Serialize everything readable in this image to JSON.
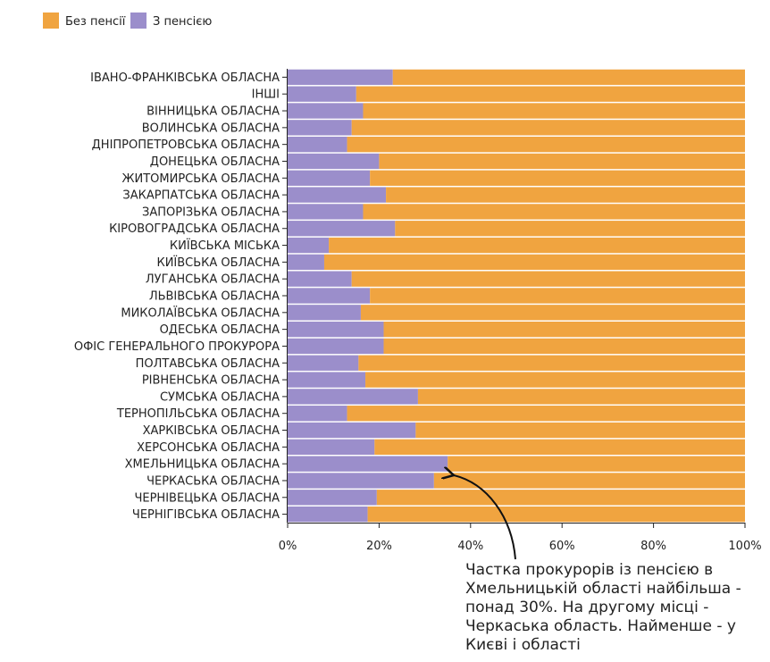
{
  "chart_data": {
    "type": "bar",
    "orientation": "horizontal",
    "stacked": "normalized_percent",
    "categories": [
      "ІВАНО-ФРАНКІВСЬКА ОБЛАСНА",
      "ІНШІ",
      "ВІННИЦЬКА ОБЛАСНА",
      "ВОЛИНСЬКА ОБЛАСНА",
      "ДНІПРОПЕТРОВСЬКА ОБЛАСНА",
      "ДОНЕЦЬКА ОБЛАСНА",
      "ЖИТОМИРСЬКА ОБЛАСНА",
      "ЗАКАРПАТСЬКА ОБЛАСНА",
      "ЗАПОРІЗЬКА ОБЛАСНА",
      "КІРОВОГРАДСЬКА ОБЛАСНА",
      "КИЇВСЬКА МІСЬКА",
      "КИЇВСЬКА ОБЛАСНА",
      "ЛУГАНСЬКА ОБЛАСНА",
      "ЛЬВІВСЬКА ОБЛАСНА",
      "МИКОЛАЇВСЬКА ОБЛАСНА",
      "ОДЕСЬКА ОБЛАСНА",
      "ОФІС ГЕНЕРАЛЬНОГО ПРОКУРОРА",
      "ПОЛТАВСЬКА ОБЛАСНА",
      "РІВНЕНСЬКА ОБЛАСНА",
      "СУМСЬКА ОБЛАСНА",
      "ТЕРНОПІЛЬСЬКА ОБЛАСНА",
      "ХАРКІВСЬКА ОБЛАСНА",
      "ХЕРСОНСЬКА ОБЛАСНА",
      "ХМЕЛЬНИЦЬКА ОБЛАСНА",
      "ЧЕРКАСЬКА ОБЛАСНА",
      "ЧЕРНІВЕЦЬКА ОБЛАСНА",
      "ЧЕРНІГІВСЬКА ОБЛАСНА"
    ],
    "series": [
      {
        "name": "З пенсією",
        "color": "#9b8ecb",
        "values": [
          23,
          15,
          16.5,
          14,
          13,
          20,
          18,
          21.5,
          16.5,
          23.5,
          9,
          8,
          14,
          18,
          16,
          21,
          21,
          15.5,
          17,
          28.5,
          13,
          28,
          19,
          35,
          32,
          19.5,
          17.5
        ]
      },
      {
        "name": "Без пенсії",
        "color": "#f0a440",
        "values": [
          77,
          85,
          83.5,
          86,
          87,
          80,
          82,
          78.5,
          83.5,
          76.5,
          91,
          92,
          86,
          82,
          84,
          79,
          79,
          84.5,
          83,
          71.5,
          87,
          72,
          81,
          65,
          68,
          80.5,
          82.5
        ]
      }
    ],
    "xlim": [
      0,
      100
    ],
    "x_unit": "percent",
    "x_ticks": [
      "0%",
      "20%",
      "40%",
      "60%",
      "80%",
      "100%"
    ],
    "grid": false,
    "legend": {
      "placement": "top-left",
      "items": [
        {
          "label": "Без пенсії",
          "color": "#f0a440"
        },
        {
          "label": "З пенсією",
          "color": "#9b8ecb"
        }
      ]
    },
    "annotation": {
      "text": "Частка прокурорів із пенсією в Хмельницькій області найбільша - понад 30%. На другому місці - Черкаська область. Найменше - у Києві і області",
      "points_to": "ХМЕЛЬНИЦЬКА ОБЛАСНА"
    }
  }
}
